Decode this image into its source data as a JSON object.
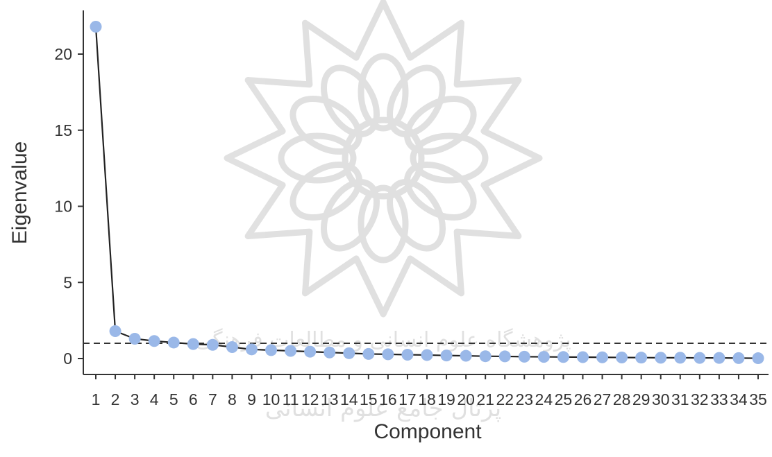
{
  "chart_data": {
    "type": "line",
    "xlabel": "Component",
    "ylabel": "Eigenvalue",
    "x": [
      1,
      2,
      3,
      4,
      5,
      6,
      7,
      8,
      9,
      10,
      11,
      12,
      13,
      14,
      15,
      16,
      17,
      18,
      19,
      20,
      21,
      22,
      23,
      24,
      25,
      26,
      27,
      28,
      29,
      30,
      31,
      32,
      33,
      34,
      35
    ],
    "x_tick_labels": [
      "1",
      "2",
      "3",
      "4",
      "5",
      "6",
      "7",
      "8",
      "9",
      "10",
      "11",
      "12",
      "13",
      "14",
      "15",
      "16",
      "17",
      "18",
      "19",
      "20",
      "21",
      "22",
      "23",
      "24",
      "25",
      "26",
      "27",
      "28",
      "29",
      "30",
      "31",
      "32",
      "33",
      "34",
      "35"
    ],
    "y_ticks": [
      0,
      5,
      10,
      15,
      20
    ],
    "y_tick_labels": [
      "0",
      "5",
      "10",
      "15",
      "20"
    ],
    "ylim": [
      -1,
      23
    ],
    "series": [
      {
        "values": [
          21.8,
          1.8,
          1.3,
          1.15,
          1.05,
          0.95,
          0.9,
          0.75,
          0.6,
          0.55,
          0.5,
          0.45,
          0.4,
          0.35,
          0.3,
          0.28,
          0.25,
          0.23,
          0.2,
          0.18,
          0.15,
          0.14,
          0.12,
          0.11,
          0.1,
          0.09,
          0.08,
          0.07,
          0.06,
          0.05,
          0.05,
          0.04,
          0.04,
          0.03,
          0.02
        ]
      }
    ],
    "reference_line": {
      "y": 1,
      "style": "dashed"
    },
    "marker_color": "#9ab8e8",
    "line_color": "#222222",
    "grid": false,
    "watermark": {
      "type": "logo",
      "color": "#c8c8c8",
      "lines": [
        "پژوهشگاه علوم انسانی و مطالعات فرهنگی",
        "پرتال جامع علوم انسانی"
      ]
    }
  }
}
